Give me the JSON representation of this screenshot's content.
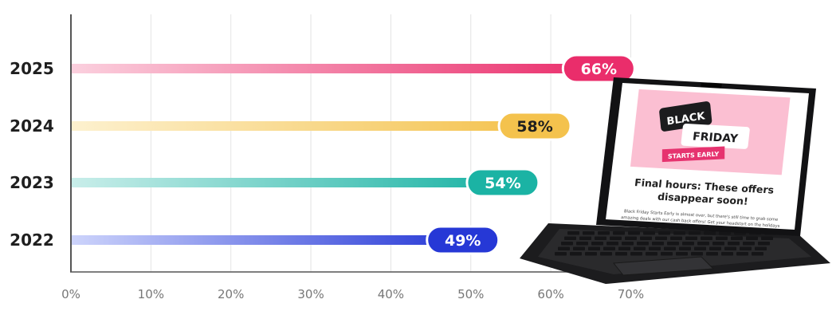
{
  "chart_data": {
    "type": "bar",
    "orientation": "horizontal",
    "categories": [
      "2025",
      "2024",
      "2023",
      "2022"
    ],
    "values": [
      66,
      58,
      54,
      49
    ],
    "value_labels": [
      "66%",
      "58%",
      "54%",
      "49%"
    ],
    "colors": [
      "#ea2d6b",
      "#f4c24d",
      "#1bb3a4",
      "#2638d6"
    ],
    "text_colors": [
      "#ffffff",
      "#1f1f1f",
      "#ffffff",
      "#ffffff"
    ],
    "fade_colors": [
      "#fbd0de",
      "#fdf1cf",
      "#c9eeea",
      "#cdd4fb"
    ],
    "x_ticks": [
      "0%",
      "10%",
      "20%",
      "30%",
      "40%",
      "50%",
      "60%",
      "70%"
    ],
    "xlim": [
      0,
      70
    ],
    "grid": true
  },
  "laptop_email": {
    "banner_line1": "BLACK",
    "banner_line2": "FRIDAY",
    "banner_ribbon": "STARTS EARLY",
    "headline_line1": "Final hours: These offers",
    "headline_line2": "disappear soon!",
    "body_line1": "Black Friday Starts Early is almost over, but there's still time to grab some",
    "body_line2": "amazing deals with our cash back offers! Get your headstart on the holidays"
  }
}
